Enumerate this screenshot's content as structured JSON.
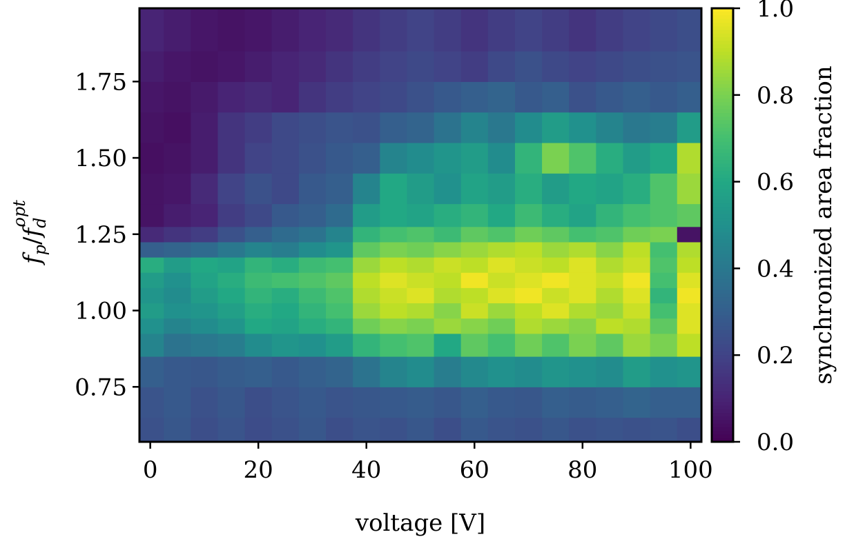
{
  "chart_data": {
    "type": "heatmap",
    "title": "",
    "xlabel": "voltage [V]",
    "ylabel": "f_p / f_d^opt",
    "ylabel_parts": {
      "num": "f",
      "num_sub": "p",
      "slash": "/",
      "den": "f",
      "den_sub": "d",
      "den_sup": "opt"
    },
    "xlim": [
      -2,
      102
    ],
    "ylim": [
      0.57,
      1.99
    ],
    "x_ticks": [
      0,
      20,
      40,
      60,
      80,
      100
    ],
    "x_tick_labels": [
      "0",
      "20",
      "40",
      "60",
      "80",
      "100"
    ],
    "y_ticks": [
      0.75,
      1.0,
      1.25,
      1.5,
      1.75
    ],
    "y_tick_labels": [
      "0.75",
      "1.00",
      "1.25",
      "1.50",
      "1.75"
    ],
    "colormap": "viridis",
    "colorbar": {
      "label": "synchronized area fraction",
      "range": [
        0.0,
        1.0
      ],
      "ticks": [
        0.0,
        0.2,
        0.4,
        0.6,
        0.8,
        1.0
      ],
      "tick_labels": [
        "0.0",
        "0.2",
        "0.4",
        "0.6",
        "0.8",
        "1.0"
      ]
    },
    "x": [
      0,
      5,
      10,
      15,
      20,
      25,
      30,
      35,
      40,
      45,
      50,
      55,
      60,
      65,
      70,
      75,
      80,
      85,
      90,
      95,
      100
    ],
    "y": [
      0.6,
      0.7,
      0.8,
      0.9,
      0.95,
      1.0,
      1.05,
      1.1,
      1.15,
      1.2,
      1.25,
      1.3,
      1.4,
      1.5,
      1.6,
      1.7,
      1.8,
      1.9
    ],
    "z": [
      [
        0.25,
        0.27,
        0.24,
        0.26,
        0.23,
        0.25,
        0.27,
        0.24,
        0.26,
        0.25,
        0.27,
        0.24,
        0.28,
        0.26,
        0.25,
        0.27,
        0.25,
        0.26,
        0.25,
        0.26,
        0.24
      ],
      [
        0.26,
        0.28,
        0.25,
        0.27,
        0.24,
        0.26,
        0.28,
        0.26,
        0.27,
        0.28,
        0.29,
        0.27,
        0.3,
        0.28,
        0.27,
        0.3,
        0.29,
        0.3,
        0.32,
        0.3,
        0.3
      ],
      [
        0.3,
        0.28,
        0.27,
        0.29,
        0.3,
        0.28,
        0.3,
        0.32,
        0.38,
        0.45,
        0.48,
        0.42,
        0.47,
        0.5,
        0.48,
        0.52,
        0.5,
        0.48,
        0.55,
        0.5,
        0.52
      ],
      [
        0.45,
        0.38,
        0.4,
        0.42,
        0.48,
        0.52,
        0.5,
        0.55,
        0.65,
        0.7,
        0.72,
        0.6,
        0.75,
        0.7,
        0.78,
        0.72,
        0.8,
        0.75,
        0.85,
        0.8,
        0.9
      ],
      [
        0.5,
        0.45,
        0.48,
        0.52,
        0.6,
        0.58,
        0.62,
        0.65,
        0.78,
        0.82,
        0.8,
        0.85,
        0.82,
        0.78,
        0.88,
        0.85,
        0.82,
        0.9,
        0.88,
        0.75,
        0.95
      ],
      [
        0.55,
        0.5,
        0.52,
        0.56,
        0.62,
        0.6,
        0.65,
        0.7,
        0.85,
        0.9,
        0.88,
        0.82,
        0.92,
        0.85,
        0.9,
        0.95,
        0.88,
        0.85,
        0.92,
        0.7,
        0.95
      ],
      [
        0.52,
        0.48,
        0.55,
        0.6,
        0.65,
        0.62,
        0.68,
        0.72,
        0.88,
        0.92,
        0.95,
        0.88,
        0.9,
        0.95,
        0.98,
        0.92,
        0.95,
        0.88,
        0.95,
        0.65,
        0.98
      ],
      [
        0.55,
        0.5,
        0.58,
        0.62,
        0.68,
        0.7,
        0.72,
        0.75,
        0.9,
        0.95,
        0.92,
        0.9,
        0.98,
        0.92,
        0.95,
        0.98,
        0.95,
        0.92,
        0.98,
        0.7,
        0.95
      ],
      [
        0.62,
        0.55,
        0.6,
        0.58,
        0.65,
        0.62,
        0.68,
        0.7,
        0.85,
        0.9,
        0.88,
        0.92,
        0.9,
        0.95,
        0.92,
        0.9,
        0.95,
        0.88,
        0.92,
        0.72,
        0.9
      ],
      [
        0.3,
        0.32,
        0.35,
        0.4,
        0.45,
        0.42,
        0.48,
        0.52,
        0.75,
        0.8,
        0.78,
        0.82,
        0.85,
        0.88,
        0.9,
        0.85,
        0.88,
        0.82,
        0.9,
        0.7,
        0.88
      ],
      [
        0.12,
        0.15,
        0.18,
        0.25,
        0.3,
        0.35,
        0.38,
        0.45,
        0.65,
        0.7,
        0.72,
        0.68,
        0.75,
        0.72,
        0.78,
        0.75,
        0.7,
        0.72,
        0.78,
        0.8,
        0.05
      ],
      [
        0.05,
        0.08,
        0.1,
        0.18,
        0.22,
        0.28,
        0.3,
        0.35,
        0.55,
        0.6,
        0.58,
        0.62,
        0.65,
        0.6,
        0.68,
        0.62,
        0.58,
        0.65,
        0.7,
        0.72,
        0.75
      ],
      [
        0.05,
        0.06,
        0.12,
        0.2,
        0.25,
        0.22,
        0.28,
        0.3,
        0.45,
        0.6,
        0.55,
        0.5,
        0.58,
        0.55,
        0.62,
        0.55,
        0.6,
        0.58,
        0.62,
        0.72,
        0.85
      ],
      [
        0.04,
        0.05,
        0.08,
        0.15,
        0.2,
        0.22,
        0.25,
        0.28,
        0.3,
        0.45,
        0.48,
        0.52,
        0.55,
        0.48,
        0.65,
        0.8,
        0.72,
        0.62,
        0.55,
        0.6,
        0.88
      ],
      [
        0.05,
        0.04,
        0.08,
        0.15,
        0.18,
        0.22,
        0.24,
        0.26,
        0.25,
        0.3,
        0.32,
        0.38,
        0.45,
        0.4,
        0.48,
        0.55,
        0.5,
        0.45,
        0.4,
        0.42,
        0.55
      ],
      [
        0.06,
        0.05,
        0.07,
        0.1,
        0.12,
        0.1,
        0.15,
        0.18,
        0.2,
        0.22,
        0.25,
        0.28,
        0.3,
        0.32,
        0.28,
        0.3,
        0.25,
        0.28,
        0.3,
        0.28,
        0.3
      ],
      [
        0.08,
        0.06,
        0.05,
        0.06,
        0.08,
        0.1,
        0.12,
        0.15,
        0.18,
        0.2,
        0.22,
        0.2,
        0.18,
        0.22,
        0.25,
        0.22,
        0.2,
        0.22,
        0.24,
        0.25,
        0.26
      ],
      [
        0.1,
        0.08,
        0.06,
        0.05,
        0.06,
        0.08,
        0.1,
        0.12,
        0.15,
        0.18,
        0.2,
        0.18,
        0.15,
        0.18,
        0.2,
        0.18,
        0.15,
        0.18,
        0.2,
        0.22,
        0.24
      ]
    ]
  }
}
